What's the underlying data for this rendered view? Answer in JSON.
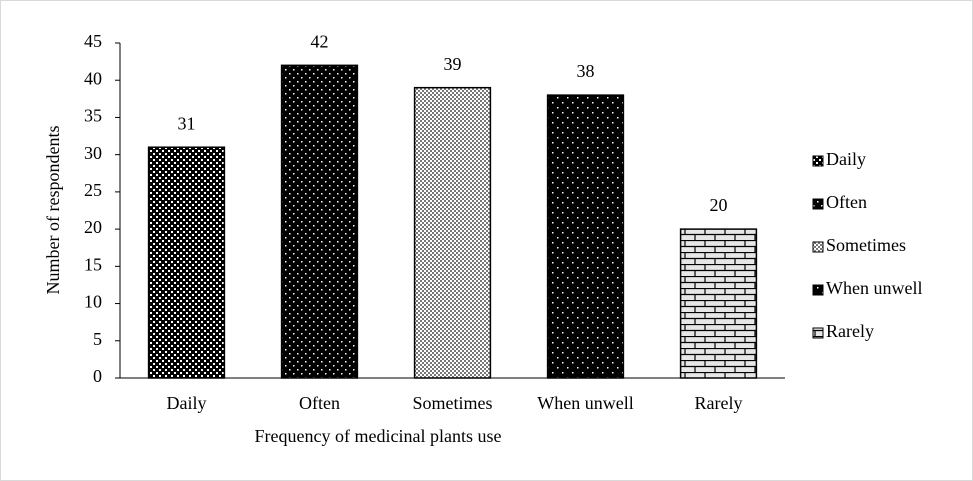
{
  "chart_data": {
    "type": "bar",
    "x_label": "Frequency of medicinal plants use",
    "y_label": "Number of respondents",
    "categories": [
      "Daily",
      "Often",
      "Sometimes",
      "When unwell",
      "Rarely"
    ],
    "values": [
      31,
      42,
      39,
      38,
      20
    ],
    "color": "#000000",
    "ylim": [
      0,
      45
    ],
    "yticks": [
      0,
      5,
      10,
      15,
      20,
      25,
      30,
      35,
      40,
      45
    ],
    "grid": false,
    "legend": "right"
  }
}
